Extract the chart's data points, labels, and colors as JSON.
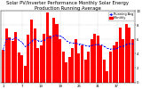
{
  "title": "Solar PV/Inverter Performance Monthly Solar Energy Production Running Average",
  "bar_color": "#ff0000",
  "line_color": "#0000ff",
  "background_color": "#ffffff",
  "grid_color": "#aaaaaa",
  "values": [
    55,
    90,
    75,
    70,
    85,
    50,
    45,
    28,
    80,
    105,
    90,
    58,
    62,
    82,
    118,
    78,
    108,
    98,
    72,
    52,
    33,
    43,
    58,
    72,
    48,
    62,
    38,
    52,
    72,
    82,
    78,
    62,
    38,
    18,
    52,
    62,
    68,
    92,
    72,
    98,
    92,
    72
  ],
  "running_avg": [
    55,
    72,
    73,
    72,
    75,
    71,
    67,
    60,
    63,
    69,
    73,
    70,
    69,
    71,
    75,
    75,
    78,
    79,
    78,
    75,
    70,
    67,
    66,
    66,
    64,
    64,
    62,
    61,
    62,
    63,
    64,
    63,
    61,
    57,
    56,
    56,
    57,
    60,
    61,
    64,
    65,
    65
  ],
  "ylim": [
    0,
    120
  ],
  "yticks": [
    0,
    2,
    4,
    6,
    8,
    10
  ],
  "ytick_labels": [
    "0",
    "2",
    "4",
    "6",
    "8",
    "10"
  ],
  "ytick_scale": 12,
  "n_bars": 42,
  "title_fontsize": 3.8,
  "tick_fontsize": 2.8,
  "legend_fontsize": 2.5
}
